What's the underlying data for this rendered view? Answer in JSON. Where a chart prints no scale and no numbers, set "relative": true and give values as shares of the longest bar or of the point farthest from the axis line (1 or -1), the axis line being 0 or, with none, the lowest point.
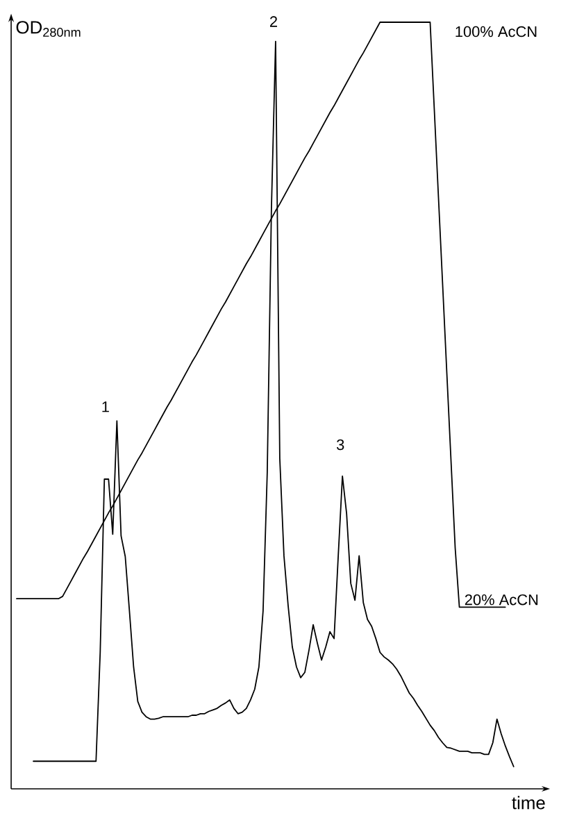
{
  "chart_data": {
    "type": "line",
    "relative": true,
    "xlabel": "time",
    "ylabel": "OD$_{280nm}$",
    "marker": "none",
    "line_style": "solid",
    "categories": [
      null,
      null,
      null,
      null,
      null,
      null,
      null,
      null,
      null,
      null,
      null,
      null,
      null,
      null,
      null,
      null,
      null,
      null,
      null,
      null,
      null,
      null,
      null,
      null,
      null,
      null,
      null,
      null,
      null,
      null,
      null,
      null,
      null,
      null,
      null,
      null,
      null,
      null,
      null,
      null,
      null,
      null,
      null,
      null,
      null,
      null,
      null,
      null,
      null,
      null,
      null,
      null,
      null,
      null,
      null,
      null,
      null,
      null,
      null,
      null,
      null,
      null,
      null,
      null,
      null,
      null,
      null,
      null,
      null,
      null,
      null,
      null,
      null,
      null,
      null,
      null,
      null,
      null,
      null,
      null,
      null,
      null,
      null,
      null,
      null,
      null,
      null,
      null,
      null,
      null,
      null,
      null,
      null,
      null,
      null,
      null,
      null,
      null,
      null,
      null,
      null,
      null,
      null,
      null,
      null,
      null,
      null,
      null,
      null,
      null,
      null,
      null,
      null,
      null,
      null,
      null,
      null,
      null,
      null,
      null
    ],
    "series": [
      {
        "color": "#000000",
        "values": [
          null,
          null,
          null,
          null,
          0.036,
          0.036,
          0.036,
          0.036,
          0.036,
          0.036,
          0.036,
          0.036,
          0.036,
          0.036,
          0.036,
          0.036,
          0.036,
          0.036,
          0.036,
          0.036,
          0.178,
          0.404,
          0.404,
          0.332,
          0.48,
          0.33,
          0.303,
          0.232,
          0.159,
          0.114,
          0.1,
          0.094,
          0.091,
          0.091,
          0.092,
          0.094,
          0.094,
          0.094,
          0.094,
          0.094,
          0.094,
          0.094,
          0.096,
          0.096,
          0.098,
          0.098,
          0.101,
          0.103,
          0.105,
          0.109,
          0.112,
          0.116,
          0.105,
          0.098,
          0.1,
          0.105,
          0.116,
          0.13,
          0.159,
          0.232,
          0.413,
          0.757,
          0.975,
          0.431,
          0.304,
          0.239,
          0.185,
          0.159,
          0.145,
          0.152,
          0.181,
          0.214,
          0.19,
          0.168,
          0.185,
          0.205,
          0.196,
          0.304,
          0.408,
          0.359,
          0.268,
          0.246,
          0.304,
          0.243,
          0.221,
          0.212,
          0.196,
          0.178,
          0.172,
          0.168,
          0.163,
          0.156,
          0.147,
          0.136,
          0.125,
          0.118,
          0.109,
          0.101,
          0.092,
          0.083,
          0.076,
          0.067,
          0.06,
          0.054,
          0.053,
          0.051,
          0.049,
          0.049,
          0.049,
          0.047,
          0.047,
          0.047,
          0.045,
          0.045,
          0.06,
          0.091,
          0.072,
          0.056,
          0.042,
          0.029
        ]
      },
      {
        "color": "#000000",
        "values": [
          0.248,
          0.248,
          0.248,
          0.248,
          0.248,
          0.248,
          0.248,
          0.248,
          0.248,
          0.248,
          0.248,
          0.251,
          0.261,
          0.271,
          0.281,
          0.291,
          0.301,
          0.31,
          0.32,
          0.33,
          0.34,
          0.35,
          0.36,
          0.369,
          0.379,
          0.389,
          0.399,
          0.409,
          0.419,
          0.429,
          0.438,
          0.448,
          0.458,
          0.468,
          0.478,
          0.488,
          0.498,
          0.507,
          0.517,
          0.527,
          0.537,
          0.547,
          0.557,
          0.566,
          0.576,
          0.586,
          0.596,
          0.606,
          0.616,
          0.626,
          0.635,
          0.645,
          0.655,
          0.665,
          0.675,
          0.685,
          0.694,
          0.704,
          0.714,
          0.724,
          0.734,
          0.744,
          0.754,
          0.763,
          0.773,
          0.783,
          0.793,
          0.803,
          0.813,
          0.823,
          0.832,
          0.842,
          0.852,
          0.862,
          0.872,
          0.882,
          0.891,
          0.901,
          0.911,
          0.921,
          0.931,
          0.941,
          0.951,
          0.96,
          0.97,
          0.98,
          0.99,
          1,
          1,
          1,
          1,
          1,
          1,
          1,
          1,
          1,
          1,
          1,
          1,
          1,
          0.886,
          0.771,
          0.657,
          0.542,
          0.428,
          0.314,
          0.237,
          0.237,
          0.237,
          0.237,
          0.237,
          0.237,
          0.237,
          0.237,
          0.237,
          0.237,
          0.237,
          0.237,
          null,
          null
        ]
      }
    ],
    "annotations": [
      "1",
      "2",
      "3",
      "100% AcCN",
      "20% AcCN"
    ]
  }
}
